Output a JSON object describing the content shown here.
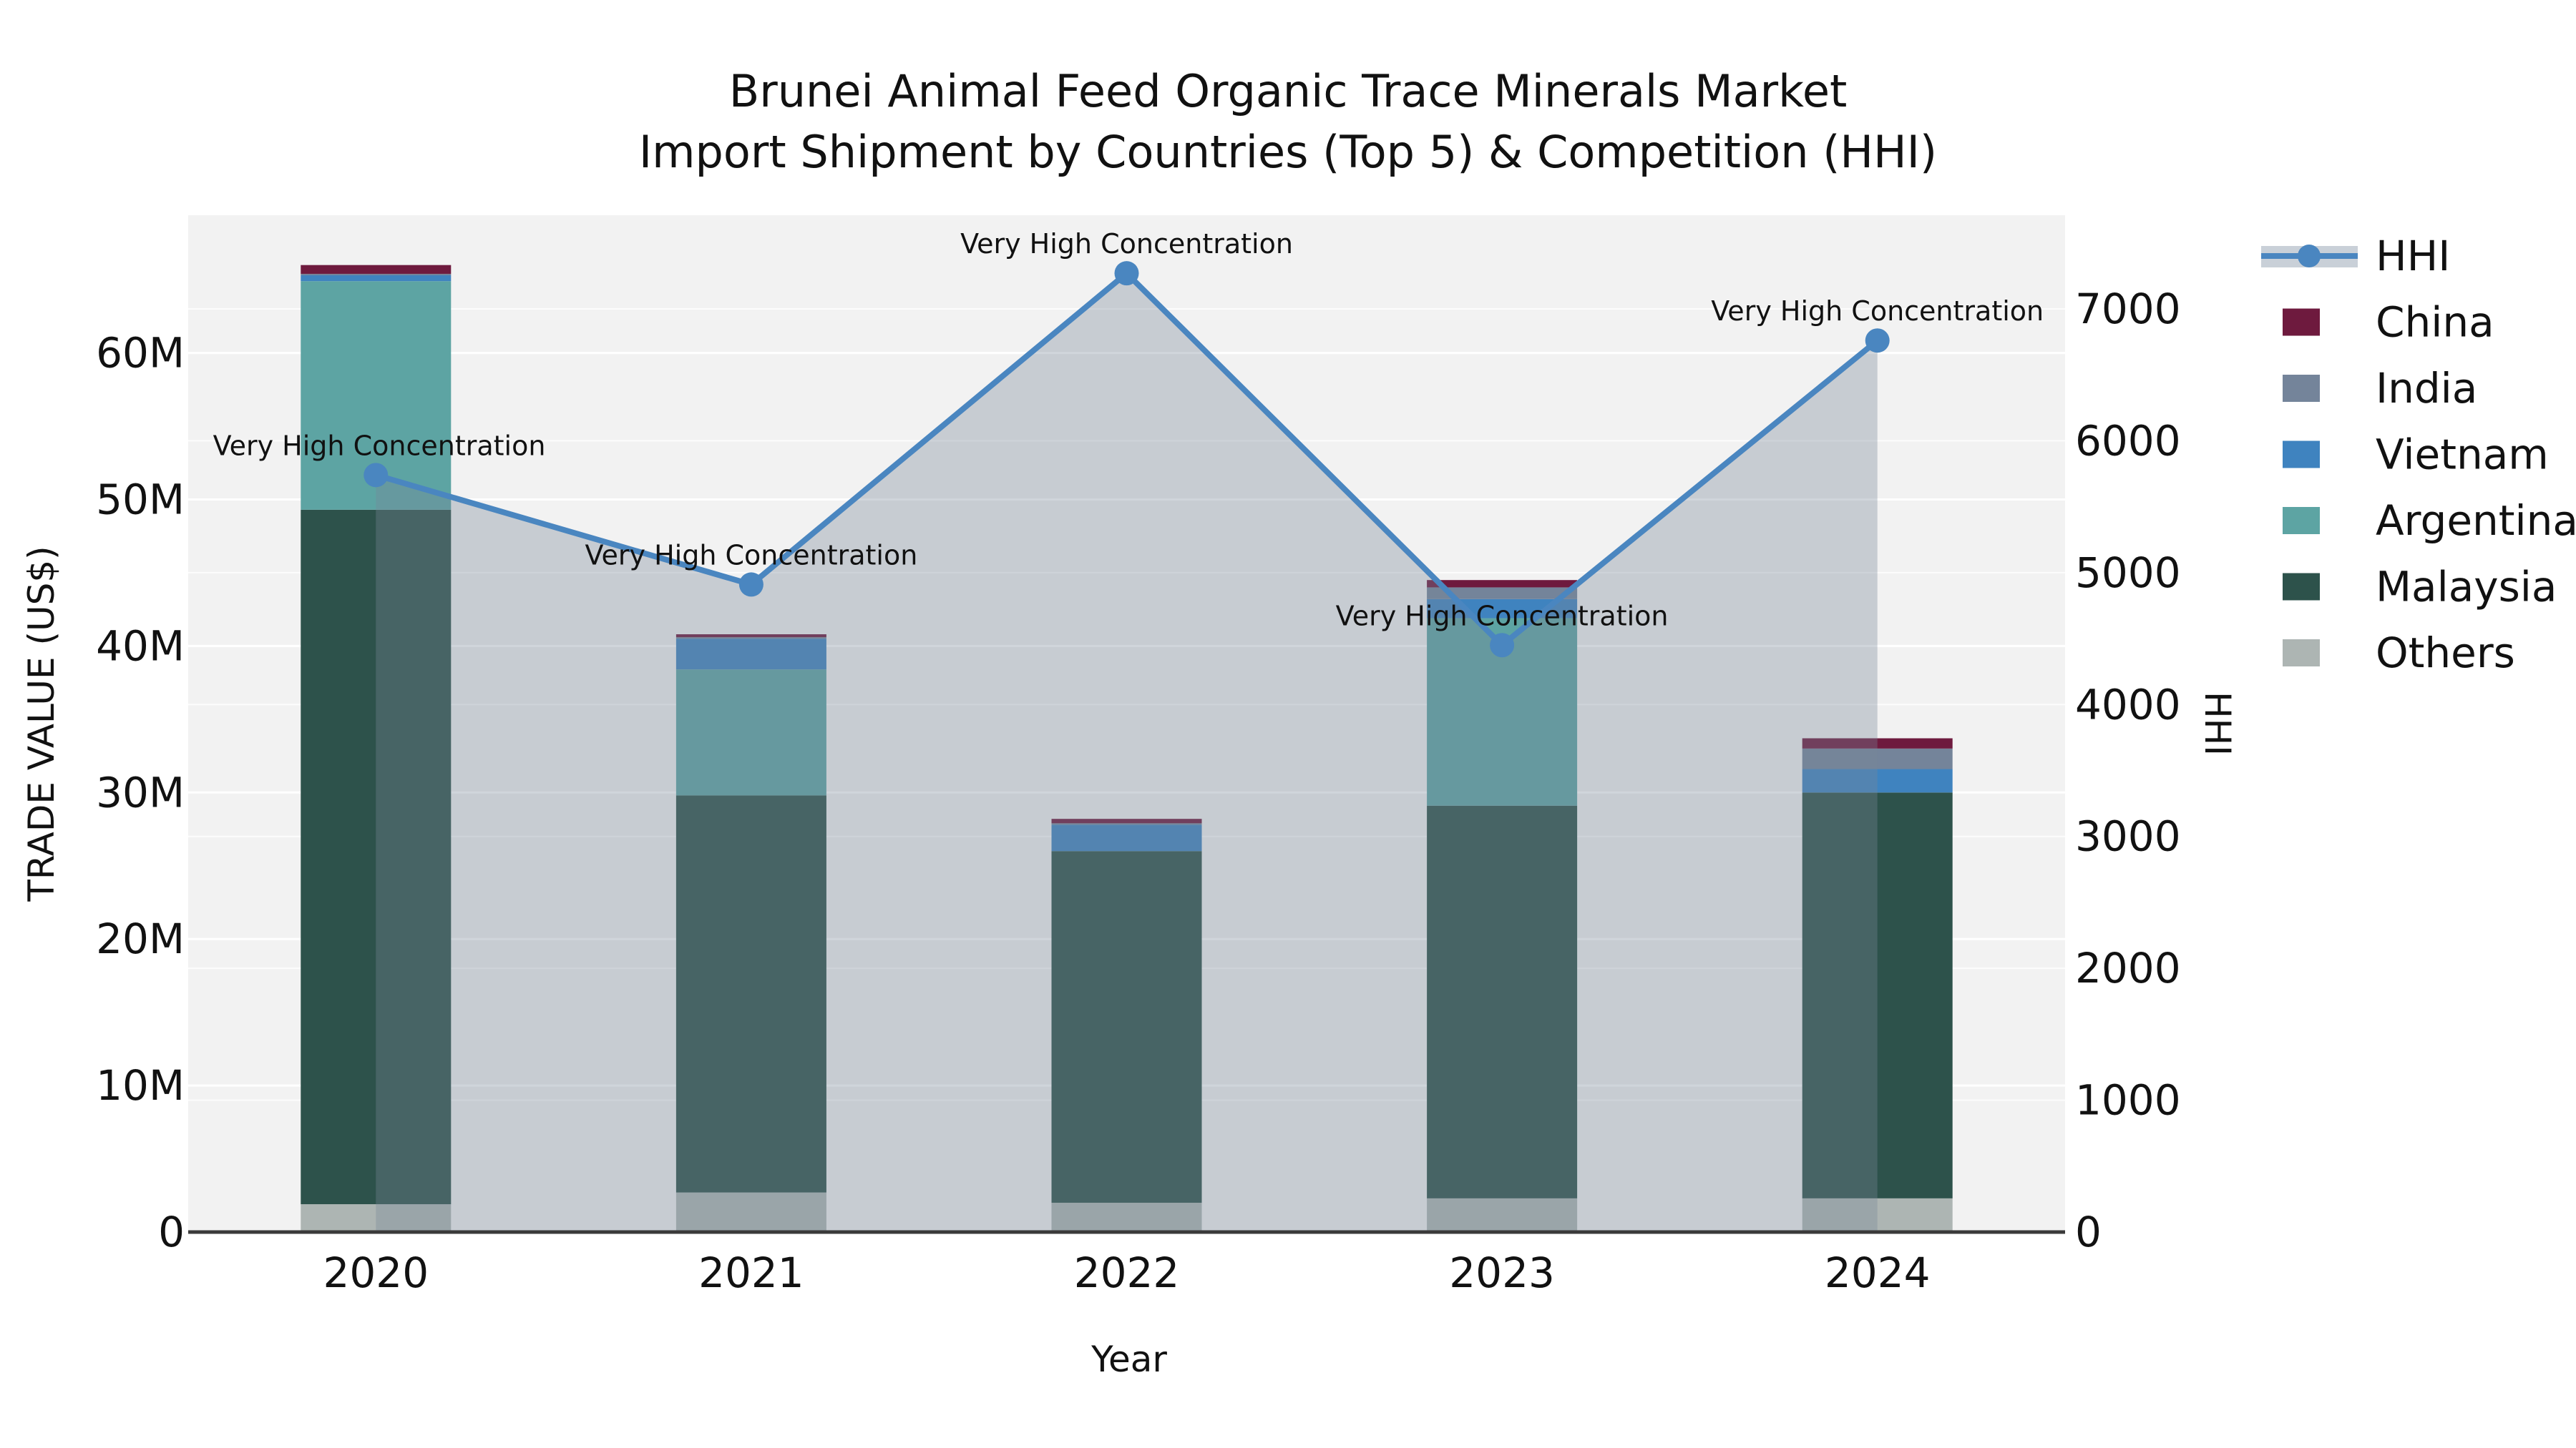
{
  "title": {
    "line1": "Brunei Animal Feed Organic Trace Minerals Market",
    "line2": "Import Shipment by Countries (Top 5) & Competition (HHI)"
  },
  "axes": {
    "x_label": "Year",
    "y_left_label": "TRADE VALUE (US$)",
    "y_right_label": "HHI"
  },
  "legend": {
    "entries": [
      {
        "label": "HHI",
        "type": "line",
        "color": "#4a86c0"
      },
      {
        "label": "China",
        "type": "swatch",
        "color": "#6e1a3e"
      },
      {
        "label": "India",
        "type": "swatch",
        "color": "#74849a"
      },
      {
        "label": "Vietnam",
        "type": "swatch",
        "color": "#3f83bf"
      },
      {
        "label": "Argentina",
        "type": "swatch",
        "color": "#5da4a3"
      },
      {
        "label": "Malaysia",
        "type": "swatch",
        "color": "#2d524b"
      },
      {
        "label": "Others",
        "type": "swatch",
        "color": "#adb5b3"
      }
    ]
  },
  "chart_data": {
    "type": "bar+line",
    "title": "Brunei Animal Feed Organic Trace Minerals Market Import Shipment by Countries (Top 5) & Competition (HHI)",
    "categories": [
      "2020",
      "2021",
      "2022",
      "2023",
      "2024"
    ],
    "stack_order_note": "series stacked bottom to top",
    "series": [
      {
        "name": "Others",
        "color": "#adb5b3",
        "values": [
          1.9,
          2.7,
          2.0,
          2.3,
          2.3
        ]
      },
      {
        "name": "Malaysia",
        "color": "#2d524b",
        "values": [
          47.4,
          27.1,
          24.0,
          26.8,
          27.7
        ]
      },
      {
        "name": "Argentina",
        "color": "#5da4a3",
        "values": [
          15.6,
          8.6,
          0.0,
          12.8,
          0.0
        ]
      },
      {
        "name": "Vietnam",
        "color": "#3f83bf",
        "values": [
          0.4,
          2.1,
          1.8,
          1.3,
          1.6
        ]
      },
      {
        "name": "India",
        "color": "#74849a",
        "values": [
          0.1,
          0.1,
          0.1,
          0.8,
          1.4
        ]
      },
      {
        "name": "China",
        "color": "#6e1a3e",
        "values": [
          0.6,
          0.2,
          0.3,
          0.5,
          0.7
        ]
      }
    ],
    "bar_totals_millions": [
      66.0,
      40.8,
      28.2,
      44.5,
      33.7
    ],
    "line": {
      "name": "HHI",
      "color": "#4a86c0",
      "area_fill": "rgba(119,136,153,0.35)",
      "values": [
        5740,
        4910,
        7270,
        4450,
        6760
      ]
    },
    "annotations": [
      "Very High Concentration",
      "Very High Concentration",
      "Very High Concentration",
      "Very High Concentration",
      "Very High Concentration"
    ],
    "xlabel": "Year",
    "ylabel_left": "TRADE VALUE (US$)",
    "ylabel_right": "HHI",
    "yticks_left": [
      "0",
      "10M",
      "20M",
      "30M",
      "40M",
      "50M",
      "60M"
    ],
    "yticks_left_values": [
      0,
      10,
      20,
      30,
      40,
      50,
      60
    ],
    "yticks_right": [
      "0",
      "1000",
      "2000",
      "3000",
      "4000",
      "5000",
      "6000",
      "7000"
    ],
    "yticks_right_values": [
      0,
      1000,
      2000,
      3000,
      4000,
      5000,
      6000,
      7000
    ],
    "ylim_left": [
      0,
      69.4
    ],
    "ylim_right": [
      0,
      7710
    ],
    "grid": true,
    "legend_position": "outside-right",
    "plot_background": "#f2f2f2"
  }
}
